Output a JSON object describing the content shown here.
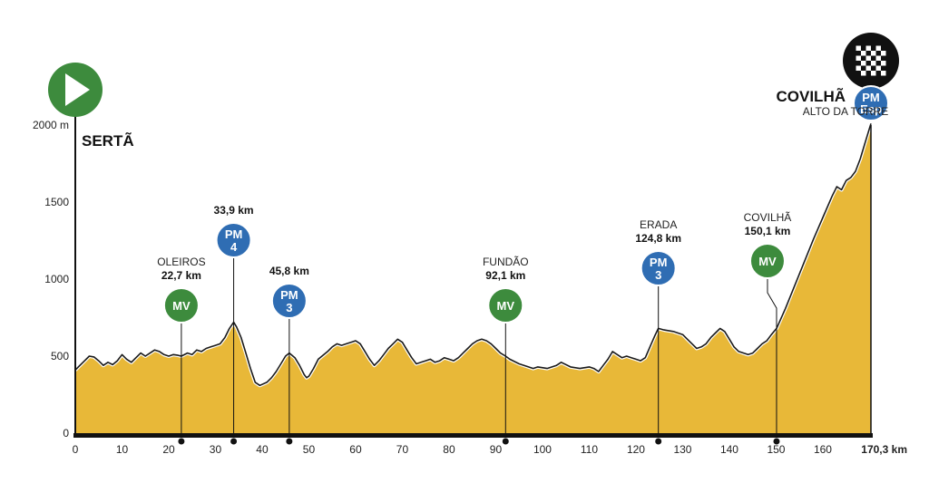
{
  "chart_data": {
    "type": "area",
    "x_unit_label": "170,3 km",
    "x_ticks": [
      "0",
      "10",
      "20",
      "30",
      "40",
      "50",
      "60",
      "70",
      "80",
      "90",
      "100",
      "110",
      "120",
      "130",
      "140",
      "150",
      "160"
    ],
    "y_ticks": [
      "2000 m",
      "1500",
      "1000",
      "500",
      "0"
    ],
    "xlim": [
      0,
      170.3
    ],
    "ylim": [
      0,
      2000
    ],
    "grid": false,
    "fill_color": "#e8b838",
    "line_color": "#1a1a1a",
    "start": {
      "name": "SERTÃ",
      "icon": "play-icon",
      "color": "#3d8b3d"
    },
    "finish": {
      "name": "COVILHÃ",
      "subtitle": "ALTO DA TORRE",
      "icon": "checkered-flag-icon",
      "badge_line1": "PM",
      "badge_line2": "Esp",
      "badge_color": "#2f6db3"
    },
    "profile": [
      [
        0,
        410
      ],
      [
        1,
        440
      ],
      [
        2,
        470
      ],
      [
        3,
        500
      ],
      [
        4,
        495
      ],
      [
        5,
        470
      ],
      [
        6,
        440
      ],
      [
        7,
        460
      ],
      [
        8,
        445
      ],
      [
        9,
        470
      ],
      [
        10,
        510
      ],
      [
        11,
        480
      ],
      [
        12,
        460
      ],
      [
        13,
        490
      ],
      [
        14,
        520
      ],
      [
        15,
        500
      ],
      [
        16,
        520
      ],
      [
        17,
        540
      ],
      [
        18,
        530
      ],
      [
        19,
        510
      ],
      [
        20,
        500
      ],
      [
        21,
        510
      ],
      [
        22,
        505
      ],
      [
        22.7,
        500
      ],
      [
        24,
        520
      ],
      [
        25,
        510
      ],
      [
        26,
        540
      ],
      [
        27,
        530
      ],
      [
        28,
        550
      ],
      [
        29,
        560
      ],
      [
        30,
        570
      ],
      [
        31,
        580
      ],
      [
        32,
        620
      ],
      [
        33,
        680
      ],
      [
        33.9,
        720
      ],
      [
        34.5,
        690
      ],
      [
        35.5,
        620
      ],
      [
        36.5,
        520
      ],
      [
        37.5,
        420
      ],
      [
        38.5,
        330
      ],
      [
        39.5,
        310
      ],
      [
        41,
        330
      ],
      [
        42,
        360
      ],
      [
        43,
        400
      ],
      [
        44,
        450
      ],
      [
        45,
        500
      ],
      [
        45.8,
        520
      ],
      [
        47,
        490
      ],
      [
        48,
        440
      ],
      [
        49,
        380
      ],
      [
        49.5,
        360
      ],
      [
        50,
        370
      ],
      [
        51,
        420
      ],
      [
        52,
        480
      ],
      [
        54,
        530
      ],
      [
        55,
        560
      ],
      [
        56,
        580
      ],
      [
        57,
        570
      ],
      [
        58,
        580
      ],
      [
        59,
        590
      ],
      [
        60,
        600
      ],
      [
        61,
        580
      ],
      [
        62,
        530
      ],
      [
        63,
        480
      ],
      [
        64,
        440
      ],
      [
        65,
        470
      ],
      [
        66,
        510
      ],
      [
        67,
        550
      ],
      [
        68,
        580
      ],
      [
        69,
        610
      ],
      [
        70,
        590
      ],
      [
        71,
        540
      ],
      [
        72,
        490
      ],
      [
        73,
        450
      ],
      [
        74,
        460
      ],
      [
        75,
        470
      ],
      [
        76,
        480
      ],
      [
        77,
        460
      ],
      [
        78,
        470
      ],
      [
        79,
        490
      ],
      [
        80,
        480
      ],
      [
        81,
        470
      ],
      [
        82,
        490
      ],
      [
        83,
        520
      ],
      [
        84,
        550
      ],
      [
        85,
        580
      ],
      [
        86,
        600
      ],
      [
        87,
        610
      ],
      [
        88,
        600
      ],
      [
        89,
        580
      ],
      [
        90,
        550
      ],
      [
        91,
        520
      ],
      [
        92.1,
        500
      ],
      [
        93,
        480
      ],
      [
        95,
        450
      ],
      [
        97,
        430
      ],
      [
        98,
        420
      ],
      [
        99,
        430
      ],
      [
        101,
        420
      ],
      [
        103,
        440
      ],
      [
        104,
        460
      ],
      [
        106,
        430
      ],
      [
        108,
        420
      ],
      [
        110,
        430
      ],
      [
        111,
        420
      ],
      [
        112,
        400
      ],
      [
        113,
        440
      ],
      [
        114,
        480
      ],
      [
        115,
        530
      ],
      [
        116,
        510
      ],
      [
        117,
        490
      ],
      [
        118,
        500
      ],
      [
        119,
        490
      ],
      [
        120,
        480
      ],
      [
        121,
        470
      ],
      [
        122,
        490
      ],
      [
        123,
        560
      ],
      [
        124,
        630
      ],
      [
        124.8,
        680
      ],
      [
        126,
        670
      ],
      [
        128,
        660
      ],
      [
        130,
        640
      ],
      [
        131,
        610
      ],
      [
        132,
        580
      ],
      [
        133,
        550
      ],
      [
        134,
        560
      ],
      [
        135,
        580
      ],
      [
        136,
        620
      ],
      [
        137,
        650
      ],
      [
        138,
        680
      ],
      [
        139,
        660
      ],
      [
        140,
        610
      ],
      [
        141,
        560
      ],
      [
        142,
        530
      ],
      [
        144,
        510
      ],
      [
        145,
        520
      ],
      [
        146,
        550
      ],
      [
        147,
        580
      ],
      [
        148,
        600
      ],
      [
        149,
        640
      ],
      [
        150.1,
        680
      ],
      [
        152,
        810
      ],
      [
        154,
        960
      ],
      [
        156,
        1110
      ],
      [
        158,
        1260
      ],
      [
        160,
        1400
      ],
      [
        162,
        1540
      ],
      [
        163,
        1600
      ],
      [
        164,
        1580
      ],
      [
        165,
        1640
      ],
      [
        166,
        1660
      ],
      [
        167,
        1700
      ],
      [
        168,
        1780
      ],
      [
        169,
        1880
      ],
      [
        170.3,
        2010
      ]
    ],
    "points": [
      {
        "place": "OLEIROS",
        "km_label": "22,7 km",
        "km": 22.7,
        "badge": "MV",
        "badge_line2": "",
        "badge_color": "#3d8b3d"
      },
      {
        "place": "",
        "km_label": "33,9 km",
        "km": 33.9,
        "badge": "PM",
        "badge_line2": "4",
        "badge_color": "#2f6db3"
      },
      {
        "place": "",
        "km_label": "45,8 km",
        "km": 45.8,
        "badge": "PM",
        "badge_line2": "3",
        "badge_color": "#2f6db3"
      },
      {
        "place": "FUNDÃO",
        "km_label": "92,1 km",
        "km": 92.1,
        "badge": "MV",
        "badge_line2": "",
        "badge_color": "#3d8b3d"
      },
      {
        "place": "ERADA",
        "km_label": "124,8 km",
        "km": 124.8,
        "badge": "PM",
        "badge_line2": "3",
        "badge_color": "#2f6db3"
      },
      {
        "place": "COVILHÃ",
        "km_label": "150,1 km",
        "km": 150.1,
        "badge": "MV",
        "badge_line2": "",
        "badge_color": "#3d8b3d"
      }
    ]
  }
}
